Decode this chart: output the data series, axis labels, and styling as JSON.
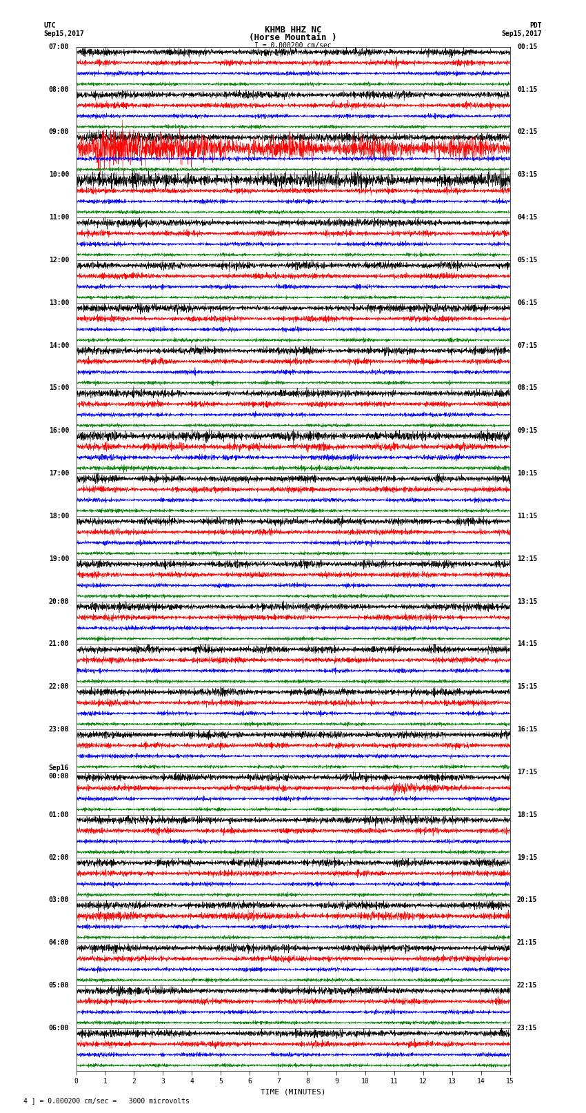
{
  "title_line1": "KHMB HHZ NC",
  "title_line2": "(Horse Mountain )",
  "scale_label": "I = 0.000200 cm/sec",
  "utc_label": "UTC",
  "utc_date": "Sep15,2017",
  "pdt_label": "PDT",
  "pdt_date": "Sep15,2017",
  "xlabel": "TIME (MINUTES)",
  "footer": "4 ] = 0.000200 cm/sec =   3000 microvolts",
  "left_times_utc": [
    "07:00",
    "08:00",
    "09:00",
    "10:00",
    "11:00",
    "12:00",
    "13:00",
    "14:00",
    "15:00",
    "16:00",
    "17:00",
    "18:00",
    "19:00",
    "20:00",
    "21:00",
    "22:00",
    "23:00",
    "Sep16\n00:00",
    "01:00",
    "02:00",
    "03:00",
    "04:00",
    "05:00",
    "06:00"
  ],
  "right_times_pdt": [
    "00:15",
    "01:15",
    "02:15",
    "03:15",
    "04:15",
    "05:15",
    "06:15",
    "07:15",
    "08:15",
    "09:15",
    "10:15",
    "11:15",
    "12:15",
    "13:15",
    "14:15",
    "15:15",
    "16:15",
    "17:15",
    "18:15",
    "19:15",
    "20:15",
    "21:15",
    "22:15",
    "23:15"
  ],
  "n_rows": 24,
  "traces_per_row": 4,
  "colors": [
    "black",
    "red",
    "blue",
    "green"
  ],
  "duration_minutes": 15,
  "bg_color": "white",
  "spine_color": "black",
  "label_fontsize": 7,
  "title_fontsize": 9
}
